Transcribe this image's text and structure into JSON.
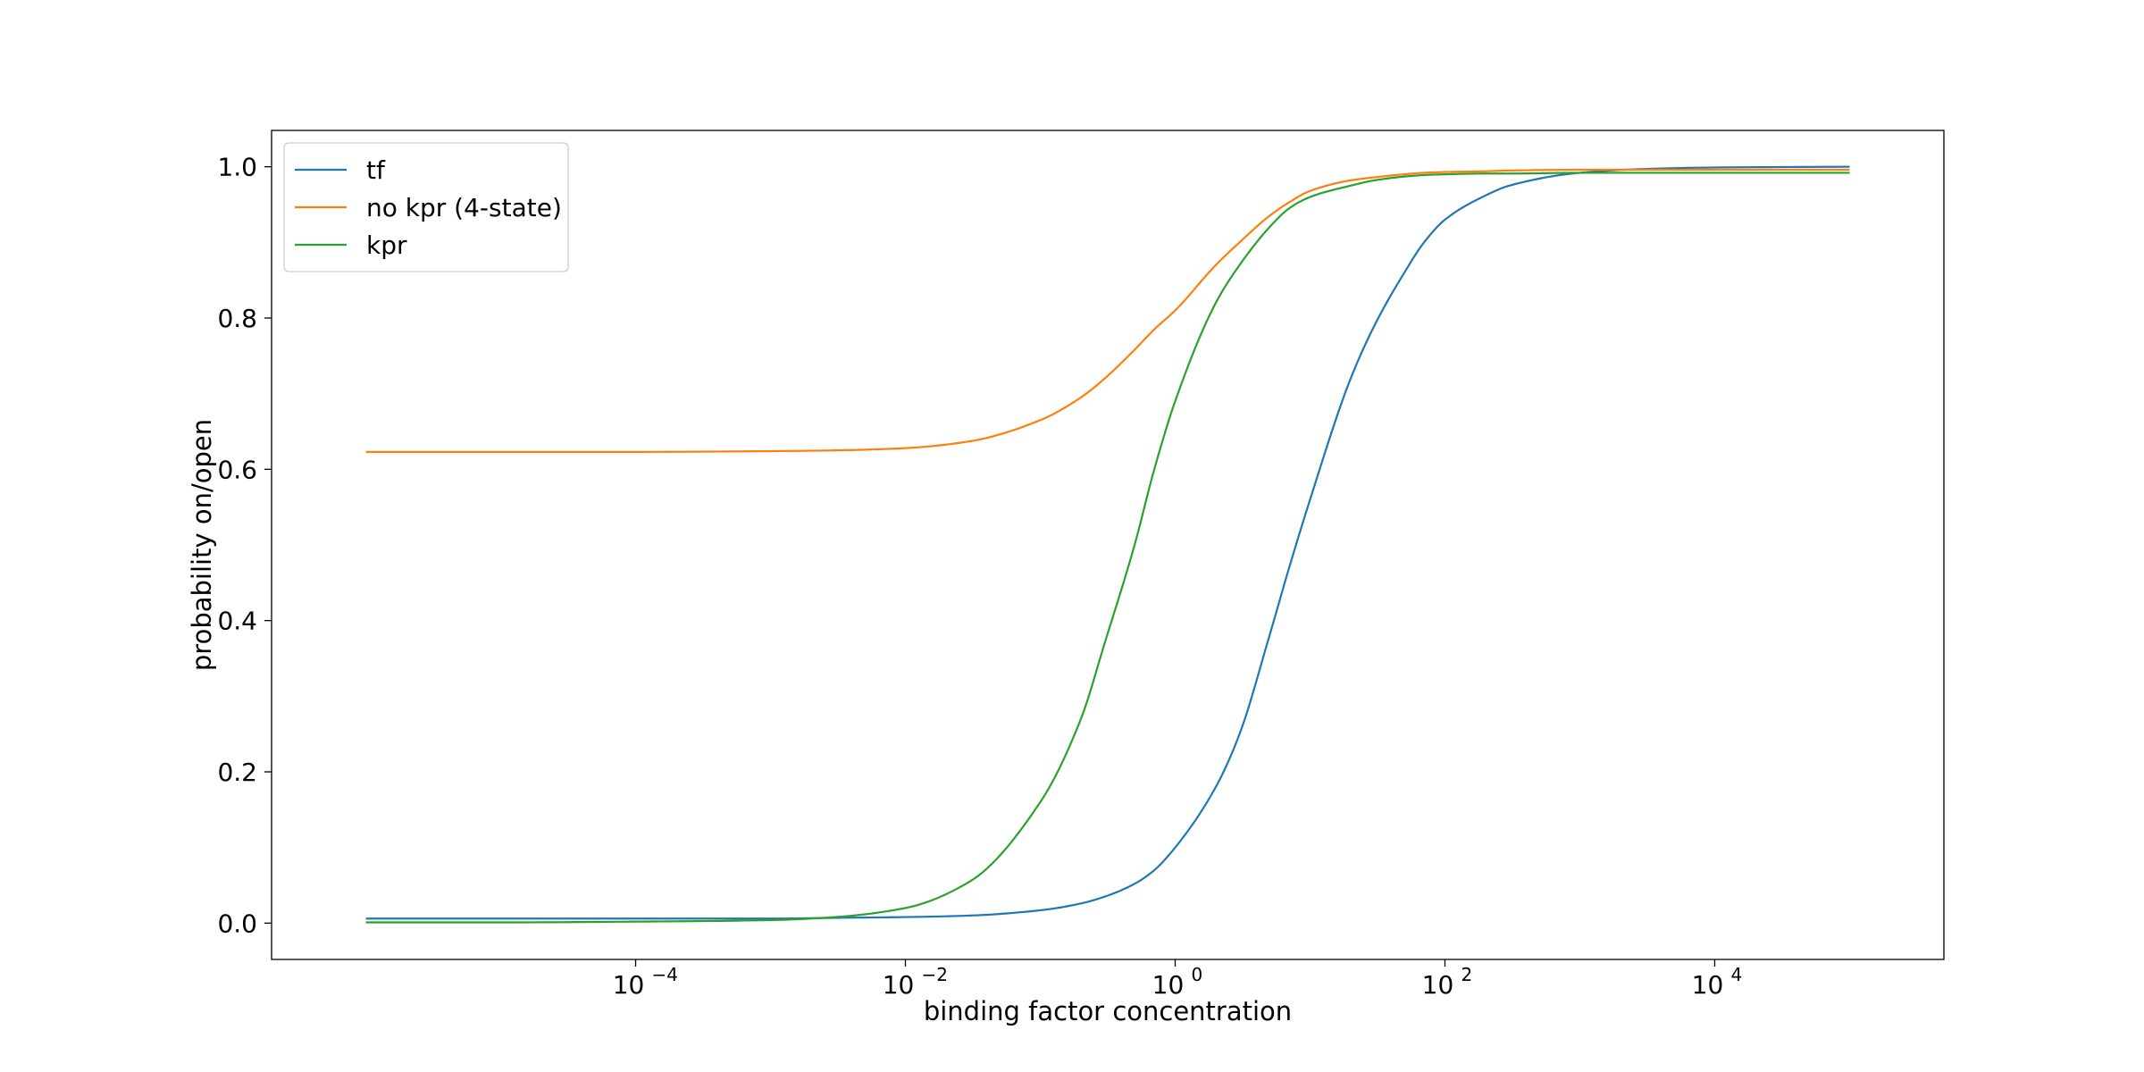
{
  "chart_data": {
    "type": "line",
    "xlabel": "binding factor concentration",
    "ylabel": "probability on/open",
    "xscale": "log",
    "xlim": [
      2e-07,
      500000
    ],
    "ylim": [
      -0.048,
      1.048
    ],
    "x_ticks": [
      {
        "value": 0.0001,
        "base": "10",
        "exp": "−4"
      },
      {
        "value": 0.01,
        "base": "10",
        "exp": "−2"
      },
      {
        "value": 1,
        "base": "10",
        "exp": "0"
      },
      {
        "value": 100,
        "base": "10",
        "exp": "2"
      },
      {
        "value": 10000,
        "base": "10",
        "exp": "4"
      }
    ],
    "y_ticks": [
      {
        "value": 0.0,
        "label": "0.0"
      },
      {
        "value": 0.2,
        "label": "0.2"
      },
      {
        "value": 0.4,
        "label": "0.4"
      },
      {
        "value": 0.6,
        "label": "0.6"
      },
      {
        "value": 0.8,
        "label": "0.8"
      },
      {
        "value": 1.0,
        "label": "1.0"
      }
    ],
    "grid": false,
    "legend_position": "top-left",
    "x": [
      1e-06,
      1e-05,
      0.0001,
      0.001,
      0.003,
      0.01,
      0.03,
      0.1,
      0.2,
      0.3,
      0.5,
      0.7,
      1,
      2,
      3,
      5,
      7,
      10,
      20,
      30,
      50,
      70,
      100,
      200,
      300,
      1000,
      3000,
      10000,
      100000
    ],
    "series": [
      {
        "name": "tf",
        "color": "#1f77b4",
        "values": [
          0.006,
          0.006,
          0.006,
          0.006,
          0.007,
          0.008,
          0.01,
          0.017,
          0.026,
          0.035,
          0.052,
          0.07,
          0.1,
          0.18,
          0.25,
          0.38,
          0.47,
          0.56,
          0.72,
          0.79,
          0.86,
          0.9,
          0.93,
          0.962,
          0.975,
          0.992,
          0.997,
          0.999,
          1.0
        ]
      },
      {
        "name": "no kpr (4-state)",
        "color": "#ff7f0e",
        "values": [
          0.623,
          0.623,
          0.623,
          0.624,
          0.625,
          0.628,
          0.637,
          0.665,
          0.695,
          0.72,
          0.758,
          0.785,
          0.81,
          0.87,
          0.9,
          0.935,
          0.953,
          0.968,
          0.982,
          0.986,
          0.99,
          0.992,
          0.993,
          0.994,
          0.995,
          0.996,
          0.996,
          0.996,
          0.996
        ]
      },
      {
        "name": "kpr",
        "color": "#2ca02c",
        "values": [
          0.001,
          0.001,
          0.002,
          0.004,
          0.008,
          0.02,
          0.055,
          0.16,
          0.27,
          0.37,
          0.5,
          0.6,
          0.69,
          0.82,
          0.87,
          0.92,
          0.945,
          0.96,
          0.975,
          0.982,
          0.987,
          0.989,
          0.99,
          0.991,
          0.991,
          0.992,
          0.992,
          0.992,
          0.992
        ]
      }
    ]
  }
}
